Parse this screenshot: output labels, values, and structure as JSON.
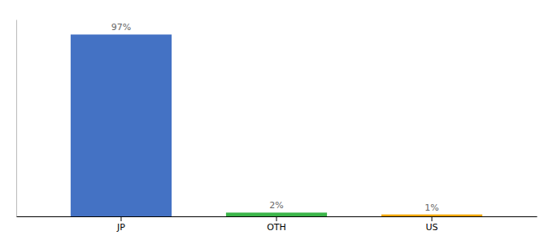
{
  "chart_data": {
    "type": "bar",
    "categories": [
      "JP",
      "OTH",
      "US"
    ],
    "values": [
      97,
      2,
      1
    ],
    "value_labels": [
      "97%",
      "2%",
      "1%"
    ],
    "colors": [
      "#4472c4",
      "#3cb54a",
      "#f0a500"
    ],
    "ylim": [
      0,
      105
    ],
    "yticks": [],
    "data_labels": true,
    "tick_labels": "x",
    "grid": false
  }
}
